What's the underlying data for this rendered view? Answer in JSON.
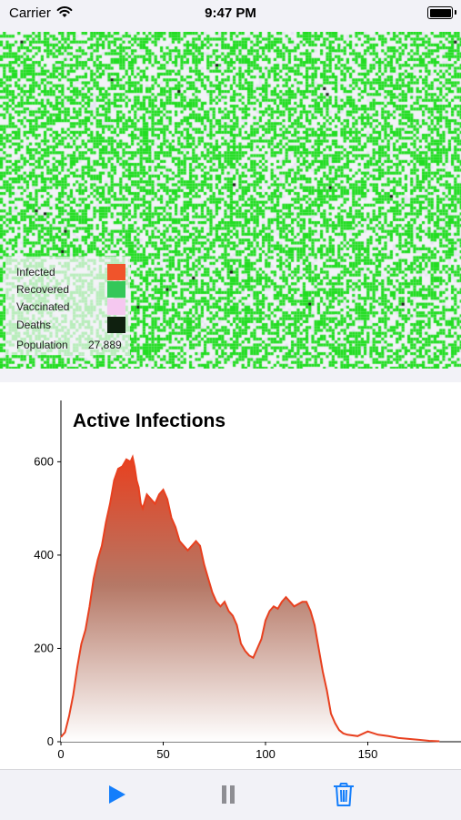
{
  "status_bar": {
    "carrier": "Carrier",
    "time": "9:47 PM"
  },
  "legend": {
    "items": [
      {
        "label": "Infected",
        "color": "#f0542b"
      },
      {
        "label": "Recovered",
        "color": "#34c759"
      },
      {
        "label": "Vaccinated",
        "color": "#f5c8f0"
      },
      {
        "label": "Deaths",
        "color": "#0f200f"
      }
    ],
    "population_label": "Population",
    "population_value": "27,889"
  },
  "colors": {
    "background": "#f2f2f7",
    "recovered_cell": "#22dd22",
    "curve": "#e8401f",
    "accent": "#147efb"
  },
  "chart_data": {
    "type": "area",
    "title": "Active Infections",
    "xlabel": "",
    "ylabel": "",
    "xlim": [
      0,
      190
    ],
    "ylim": [
      0,
      700
    ],
    "x_ticks": [
      0,
      50,
      100,
      150
    ],
    "y_ticks": [
      0,
      200,
      400,
      600
    ],
    "grid": false,
    "series": [
      {
        "x": [
          0,
          2,
          4,
          6,
          8,
          10,
          12,
          14,
          16,
          18,
          20,
          22,
          24,
          26,
          28,
          30,
          32,
          34,
          35,
          36,
          37,
          38,
          39,
          40,
          42,
          44,
          46,
          48,
          50,
          52,
          54,
          56,
          58,
          60,
          62,
          64,
          66,
          68,
          70,
          72,
          74,
          76,
          78,
          80,
          82,
          84,
          86,
          88,
          90,
          92,
          94,
          96,
          98,
          100,
          102,
          104,
          106,
          108,
          110,
          112,
          114,
          116,
          118,
          120,
          122,
          124,
          126,
          128,
          130,
          132,
          134,
          136,
          138,
          140,
          145,
          150,
          155,
          160,
          165,
          170,
          175,
          180,
          185
        ],
        "y": [
          10,
          20,
          55,
          100,
          160,
          210,
          240,
          290,
          350,
          390,
          420,
          470,
          510,
          560,
          585,
          590,
          605,
          600,
          610,
          590,
          560,
          545,
          510,
          500,
          530,
          520,
          510,
          530,
          540,
          520,
          480,
          460,
          430,
          420,
          410,
          420,
          430,
          420,
          380,
          350,
          320,
          300,
          290,
          300,
          280,
          270,
          250,
          210,
          195,
          185,
          180,
          200,
          220,
          260,
          280,
          290,
          285,
          300,
          310,
          300,
          290,
          295,
          300,
          300,
          280,
          250,
          200,
          150,
          110,
          60,
          40,
          25,
          18,
          15,
          12,
          22,
          15,
          12,
          8,
          6,
          4,
          2,
          1
        ]
      }
    ]
  },
  "toolbar": {
    "play": "play-button",
    "pause": "pause-button",
    "trash": "trash-button"
  }
}
